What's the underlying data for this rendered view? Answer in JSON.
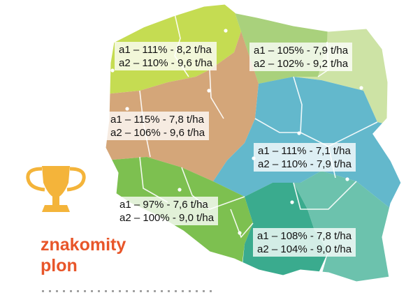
{
  "colors": {
    "north_west": "#c5dc52",
    "north_east": "#a9d17c",
    "north_east_light": "#cde3a5",
    "west": "#d4a679",
    "east": "#63b8cc",
    "south_west": "#7dc050",
    "south_east": "#6cc2ad",
    "south_east_dark": "#3aab8e",
    "borders": "#ffffff",
    "slogan": "#e8562a",
    "trophy": "#f4b43a"
  },
  "regions": {
    "north_west": {
      "line1": "a1 – 111% - 8,2 t/ha",
      "line2": "a2 – 110% - 9,6 t/ha"
    },
    "north_east": {
      "line1": "a1 – 105% - 7,9 t/ha",
      "line2": "a2 – 102% - 9,2 t/ha"
    },
    "west": {
      "line1": "a1 – 115% - 7,8 t/ha",
      "line2": "a2 – 106% - 9,6 t/ha"
    },
    "east": {
      "line1": "a1 – 111% - 7,1 t/ha",
      "line2": "a2 – 110% - 7,9 t/ha"
    },
    "south_west": {
      "line1": "a1 – 97% - 7,6 t/ha",
      "line2": "a2 – 100% - 9,0 t/ha"
    },
    "south_east": {
      "line1": "a1 – 108% - 7,8 t/ha",
      "line2": "a2 – 104% - 9,0 t/ha"
    }
  },
  "slogan": {
    "line1": "znakomity",
    "line2": "plon"
  },
  "icons": {
    "trophy": "trophy-icon",
    "city_dot": "city-dot-icon"
  }
}
